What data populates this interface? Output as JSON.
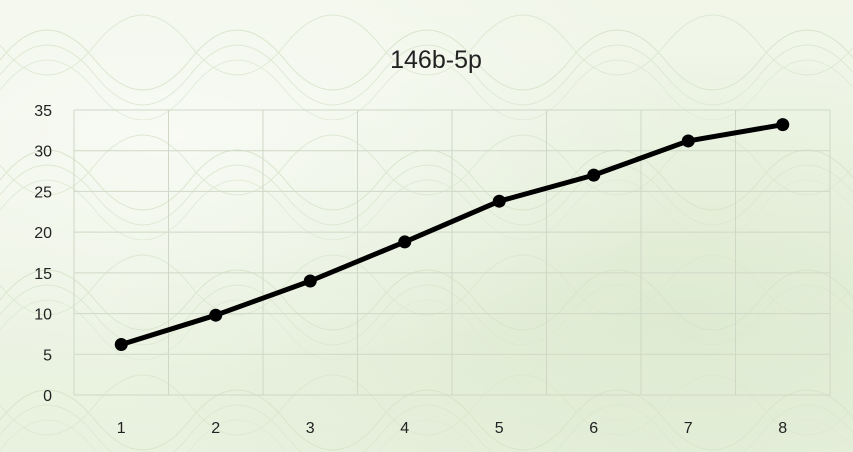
{
  "chart_data": {
    "type": "line",
    "title": "146b-5p",
    "xlabel": "",
    "ylabel": "",
    "categories": [
      "1",
      "2",
      "3",
      "4",
      "5",
      "6",
      "7",
      "8"
    ],
    "series": [
      {
        "values": [
          6.2,
          9.8,
          14.0,
          18.8,
          23.8,
          27.0,
          31.2,
          33.2
        ]
      }
    ],
    "ylim": [
      0,
      35
    ],
    "yticks": [
      "0",
      "5",
      "10",
      "15",
      "20",
      "25",
      "30",
      "35"
    ],
    "grid": true,
    "legend": "none",
    "line_color": "#000000",
    "grid_color": "#cfd8c6"
  }
}
